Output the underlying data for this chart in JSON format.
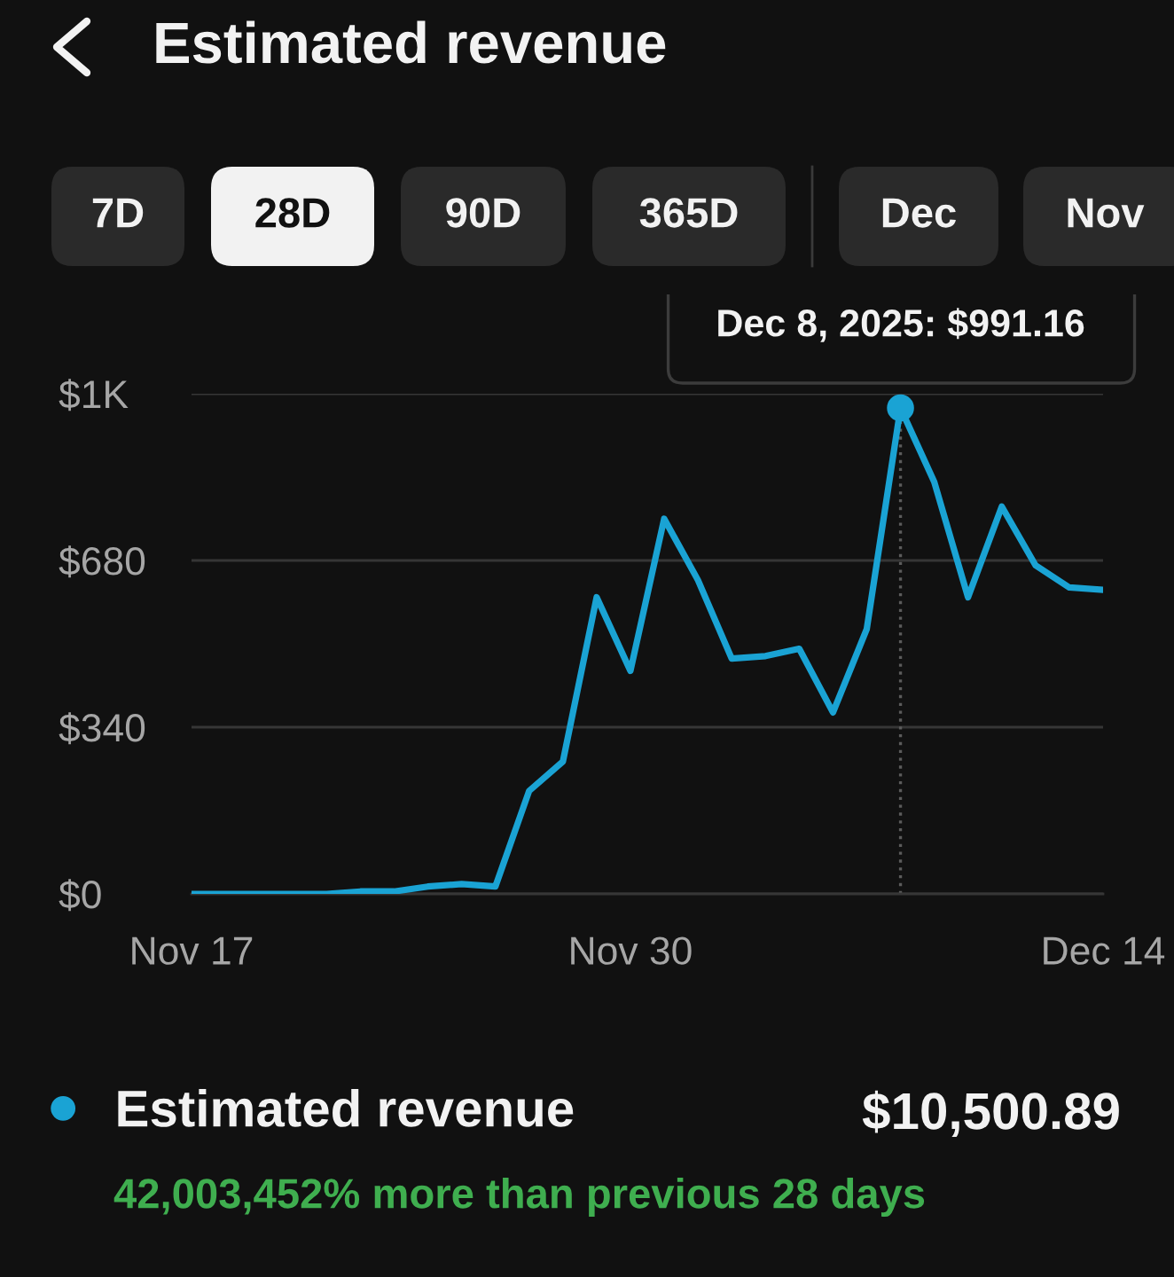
{
  "chart_data": {
    "type": "line",
    "title": "Estimated revenue",
    "x": [
      "2025-11-17",
      "2025-11-18",
      "2025-11-19",
      "2025-11-20",
      "2025-11-21",
      "2025-11-22",
      "2025-11-23",
      "2025-11-24",
      "2025-11-25",
      "2025-11-26",
      "2025-11-27",
      "2025-11-28",
      "2025-11-29",
      "2025-11-30",
      "2025-12-01",
      "2025-12-02",
      "2025-12-03",
      "2025-12-04",
      "2025-12-05",
      "2025-12-06",
      "2025-12-07",
      "2025-12-08",
      "2025-12-09",
      "2025-12-10",
      "2025-12-11",
      "2025-12-12",
      "2025-12-13",
      "2025-12-14"
    ],
    "series": [
      {
        "name": "Estimated revenue",
        "color": "#1aa3d4",
        "values": [
          0,
          0,
          0,
          0,
          0,
          5,
          5,
          15,
          20,
          15,
          210,
          270,
          605,
          455,
          765,
          640,
          480,
          485,
          500,
          370,
          540,
          991.16,
          840,
          605,
          790,
          670,
          625,
          620
        ]
      }
    ],
    "xlim": [
      "2025-11-17",
      "2025-12-14"
    ],
    "xticks": [
      {
        "value": "2025-11-17",
        "label": "Nov 17"
      },
      {
        "value": "2025-11-30",
        "label": "Nov 30"
      },
      {
        "value": "2025-12-14",
        "label": "Dec 14"
      }
    ],
    "ylim": [
      0,
      1020
    ],
    "yticks": [
      {
        "value": 0,
        "label": "$0"
      },
      {
        "value": 340,
        "label": "$340"
      },
      {
        "value": 680,
        "label": "$680"
      },
      {
        "value": 1020,
        "label": "$1K"
      }
    ],
    "grid": "y",
    "legend": "bottom",
    "ref_lines": [
      {
        "axis": "x",
        "value": "2025-12-08",
        "line_style": "dotted",
        "color": "#5c5c5c"
      }
    ],
    "annotations": [
      "7D",
      "28D",
      "90D",
      "365D",
      "Dec",
      "Nov",
      {
        "text": "Dec 8, 2025: $991.16",
        "x": "2025-12-08",
        "y": 991.16
      },
      "$10,500.89",
      "42,003,452% more than previous 28 days"
    ]
  }
}
